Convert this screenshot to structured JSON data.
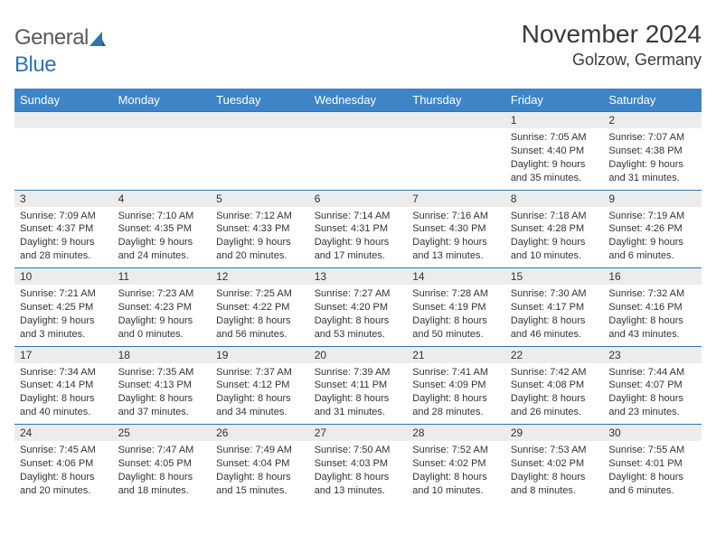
{
  "brand": {
    "part1": "General",
    "part2": "Blue"
  },
  "title": "November 2024",
  "location": "Golzow, Germany",
  "colors": {
    "header_bg": "#3d85c6",
    "header_text": "#ffffff",
    "daynum_bg": "#ececec",
    "row_border": "#2e74b5",
    "body_text": "#333333",
    "title_text": "#3a3a3a",
    "logo_gray": "#5a5a5a",
    "logo_blue": "#2e74b5"
  },
  "day_headers": [
    "Sunday",
    "Monday",
    "Tuesday",
    "Wednesday",
    "Thursday",
    "Friday",
    "Saturday"
  ],
  "weeks": [
    [
      null,
      null,
      null,
      null,
      null,
      {
        "n": "1",
        "sunrise": "7:05 AM",
        "sunset": "4:40 PM",
        "daylight": "9 hours and 35 minutes."
      },
      {
        "n": "2",
        "sunrise": "7:07 AM",
        "sunset": "4:38 PM",
        "daylight": "9 hours and 31 minutes."
      }
    ],
    [
      {
        "n": "3",
        "sunrise": "7:09 AM",
        "sunset": "4:37 PM",
        "daylight": "9 hours and 28 minutes."
      },
      {
        "n": "4",
        "sunrise": "7:10 AM",
        "sunset": "4:35 PM",
        "daylight": "9 hours and 24 minutes."
      },
      {
        "n": "5",
        "sunrise": "7:12 AM",
        "sunset": "4:33 PM",
        "daylight": "9 hours and 20 minutes."
      },
      {
        "n": "6",
        "sunrise": "7:14 AM",
        "sunset": "4:31 PM",
        "daylight": "9 hours and 17 minutes."
      },
      {
        "n": "7",
        "sunrise": "7:16 AM",
        "sunset": "4:30 PM",
        "daylight": "9 hours and 13 minutes."
      },
      {
        "n": "8",
        "sunrise": "7:18 AM",
        "sunset": "4:28 PM",
        "daylight": "9 hours and 10 minutes."
      },
      {
        "n": "9",
        "sunrise": "7:19 AM",
        "sunset": "4:26 PM",
        "daylight": "9 hours and 6 minutes."
      }
    ],
    [
      {
        "n": "10",
        "sunrise": "7:21 AM",
        "sunset": "4:25 PM",
        "daylight": "9 hours and 3 minutes."
      },
      {
        "n": "11",
        "sunrise": "7:23 AM",
        "sunset": "4:23 PM",
        "daylight": "9 hours and 0 minutes."
      },
      {
        "n": "12",
        "sunrise": "7:25 AM",
        "sunset": "4:22 PM",
        "daylight": "8 hours and 56 minutes."
      },
      {
        "n": "13",
        "sunrise": "7:27 AM",
        "sunset": "4:20 PM",
        "daylight": "8 hours and 53 minutes."
      },
      {
        "n": "14",
        "sunrise": "7:28 AM",
        "sunset": "4:19 PM",
        "daylight": "8 hours and 50 minutes."
      },
      {
        "n": "15",
        "sunrise": "7:30 AM",
        "sunset": "4:17 PM",
        "daylight": "8 hours and 46 minutes."
      },
      {
        "n": "16",
        "sunrise": "7:32 AM",
        "sunset": "4:16 PM",
        "daylight": "8 hours and 43 minutes."
      }
    ],
    [
      {
        "n": "17",
        "sunrise": "7:34 AM",
        "sunset": "4:14 PM",
        "daylight": "8 hours and 40 minutes."
      },
      {
        "n": "18",
        "sunrise": "7:35 AM",
        "sunset": "4:13 PM",
        "daylight": "8 hours and 37 minutes."
      },
      {
        "n": "19",
        "sunrise": "7:37 AM",
        "sunset": "4:12 PM",
        "daylight": "8 hours and 34 minutes."
      },
      {
        "n": "20",
        "sunrise": "7:39 AM",
        "sunset": "4:11 PM",
        "daylight": "8 hours and 31 minutes."
      },
      {
        "n": "21",
        "sunrise": "7:41 AM",
        "sunset": "4:09 PM",
        "daylight": "8 hours and 28 minutes."
      },
      {
        "n": "22",
        "sunrise": "7:42 AM",
        "sunset": "4:08 PM",
        "daylight": "8 hours and 26 minutes."
      },
      {
        "n": "23",
        "sunrise": "7:44 AM",
        "sunset": "4:07 PM",
        "daylight": "8 hours and 23 minutes."
      }
    ],
    [
      {
        "n": "24",
        "sunrise": "7:45 AM",
        "sunset": "4:06 PM",
        "daylight": "8 hours and 20 minutes."
      },
      {
        "n": "25",
        "sunrise": "7:47 AM",
        "sunset": "4:05 PM",
        "daylight": "8 hours and 18 minutes."
      },
      {
        "n": "26",
        "sunrise": "7:49 AM",
        "sunset": "4:04 PM",
        "daylight": "8 hours and 15 minutes."
      },
      {
        "n": "27",
        "sunrise": "7:50 AM",
        "sunset": "4:03 PM",
        "daylight": "8 hours and 13 minutes."
      },
      {
        "n": "28",
        "sunrise": "7:52 AM",
        "sunset": "4:02 PM",
        "daylight": "8 hours and 10 minutes."
      },
      {
        "n": "29",
        "sunrise": "7:53 AM",
        "sunset": "4:02 PM",
        "daylight": "8 hours and 8 minutes."
      },
      {
        "n": "30",
        "sunrise": "7:55 AM",
        "sunset": "4:01 PM",
        "daylight": "8 hours and 6 minutes."
      }
    ]
  ],
  "labels": {
    "sunrise": "Sunrise:",
    "sunset": "Sunset:",
    "daylight": "Daylight:"
  }
}
